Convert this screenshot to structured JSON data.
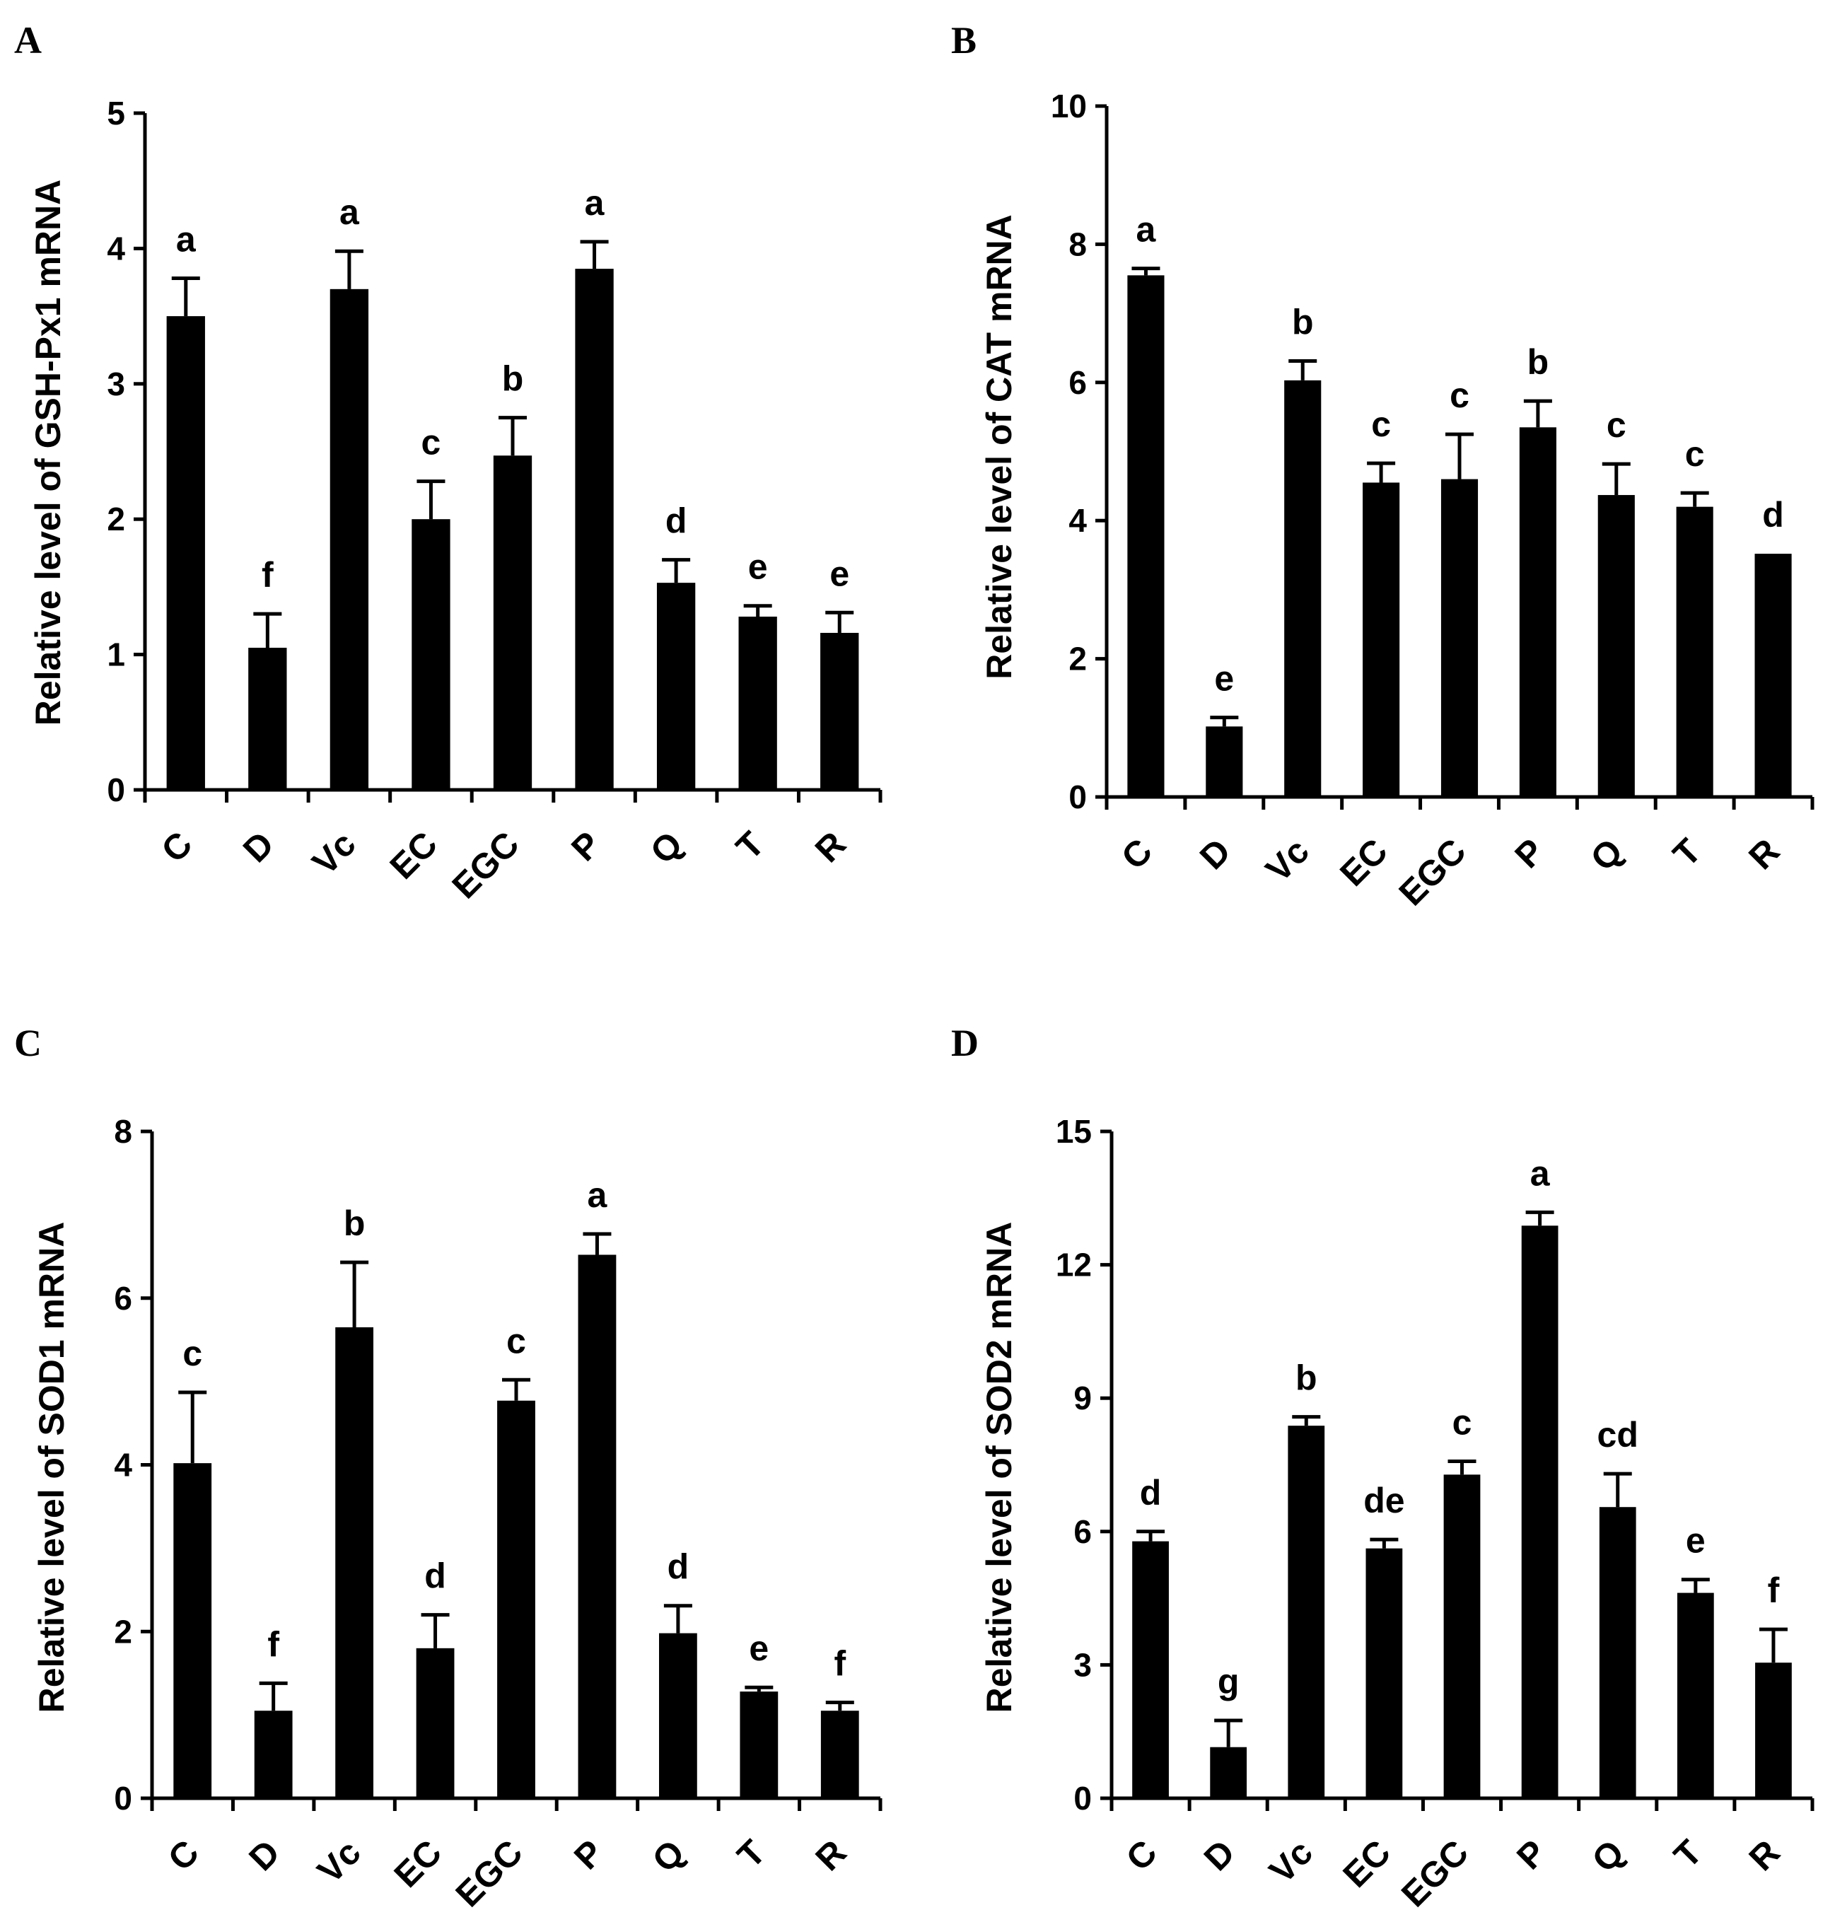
{
  "chart_data": [
    {
      "panel": "A",
      "type": "bar",
      "ylabel": "Relative level of GSH-Px1 mRNA",
      "ylim": [
        0,
        5
      ],
      "yticks": [
        0,
        1,
        2,
        3,
        4,
        5
      ],
      "categories": [
        "C",
        "D",
        "Vc",
        "EC",
        "EGC",
        "P",
        "Q",
        "T",
        "R"
      ],
      "values": [
        3.5,
        1.05,
        3.7,
        2.0,
        2.47,
        3.85,
        1.53,
        1.28,
        1.16
      ],
      "errors": [
        0.28,
        0.25,
        0.28,
        0.28,
        0.28,
        0.2,
        0.17,
        0.08,
        0.15
      ],
      "significance": [
        "a",
        "f",
        "a",
        "c",
        "b",
        "a",
        "d",
        "e",
        "e"
      ]
    },
    {
      "panel": "B",
      "type": "bar",
      "ylabel": "Relative level of  CAT mRNA",
      "ylim": [
        0,
        10
      ],
      "yticks": [
        0,
        2,
        4,
        6,
        8,
        10
      ],
      "categories": [
        "C",
        "D",
        "Vc",
        "EC",
        "EGC",
        "P",
        "Q",
        "T",
        "R"
      ],
      "values": [
        7.55,
        1.02,
        6.03,
        4.55,
        4.6,
        5.35,
        4.37,
        4.2,
        3.52
      ],
      "errors": [
        0.1,
        0.13,
        0.28,
        0.28,
        0.65,
        0.38,
        0.45,
        0.2,
        0.0
      ],
      "significance": [
        "a",
        "e",
        "b",
        "c",
        "c",
        "b",
        "c",
        "c",
        "d"
      ]
    },
    {
      "panel": "C",
      "type": "bar",
      "ylabel": "Relative level of  SOD1 mRNA",
      "ylim": [
        0,
        8
      ],
      "yticks": [
        0,
        2,
        4,
        6,
        8
      ],
      "categories": [
        "C",
        "D",
        "Vc",
        "EC",
        "EGC",
        "P",
        "Q",
        "T",
        "R"
      ],
      "values": [
        4.02,
        1.05,
        5.65,
        1.8,
        4.77,
        6.52,
        1.98,
        1.28,
        1.05
      ],
      "errors": [
        0.85,
        0.33,
        0.78,
        0.4,
        0.25,
        0.25,
        0.33,
        0.05,
        0.1
      ],
      "significance": [
        "c",
        "f",
        "b",
        "d",
        "c",
        "a",
        "d",
        "e",
        "f"
      ]
    },
    {
      "panel": "D",
      "type": "bar",
      "ylabel": "Relative level of  SOD2 mRNA",
      "ylim": [
        0,
        15
      ],
      "yticks": [
        0,
        3,
        6,
        9,
        12,
        15
      ],
      "categories": [
        "C",
        "D",
        "Vc",
        "EC",
        "EGC",
        "P",
        "Q",
        "T",
        "R"
      ],
      "values": [
        5.78,
        1.15,
        8.38,
        5.62,
        7.28,
        12.88,
        6.55,
        4.62,
        3.05
      ],
      "errors": [
        0.22,
        0.6,
        0.2,
        0.2,
        0.3,
        0.3,
        0.75,
        0.3,
        0.75
      ],
      "significance": [
        "d",
        "g",
        "b",
        "de",
        "c",
        "a",
        "cd",
        "e",
        "f"
      ]
    }
  ]
}
